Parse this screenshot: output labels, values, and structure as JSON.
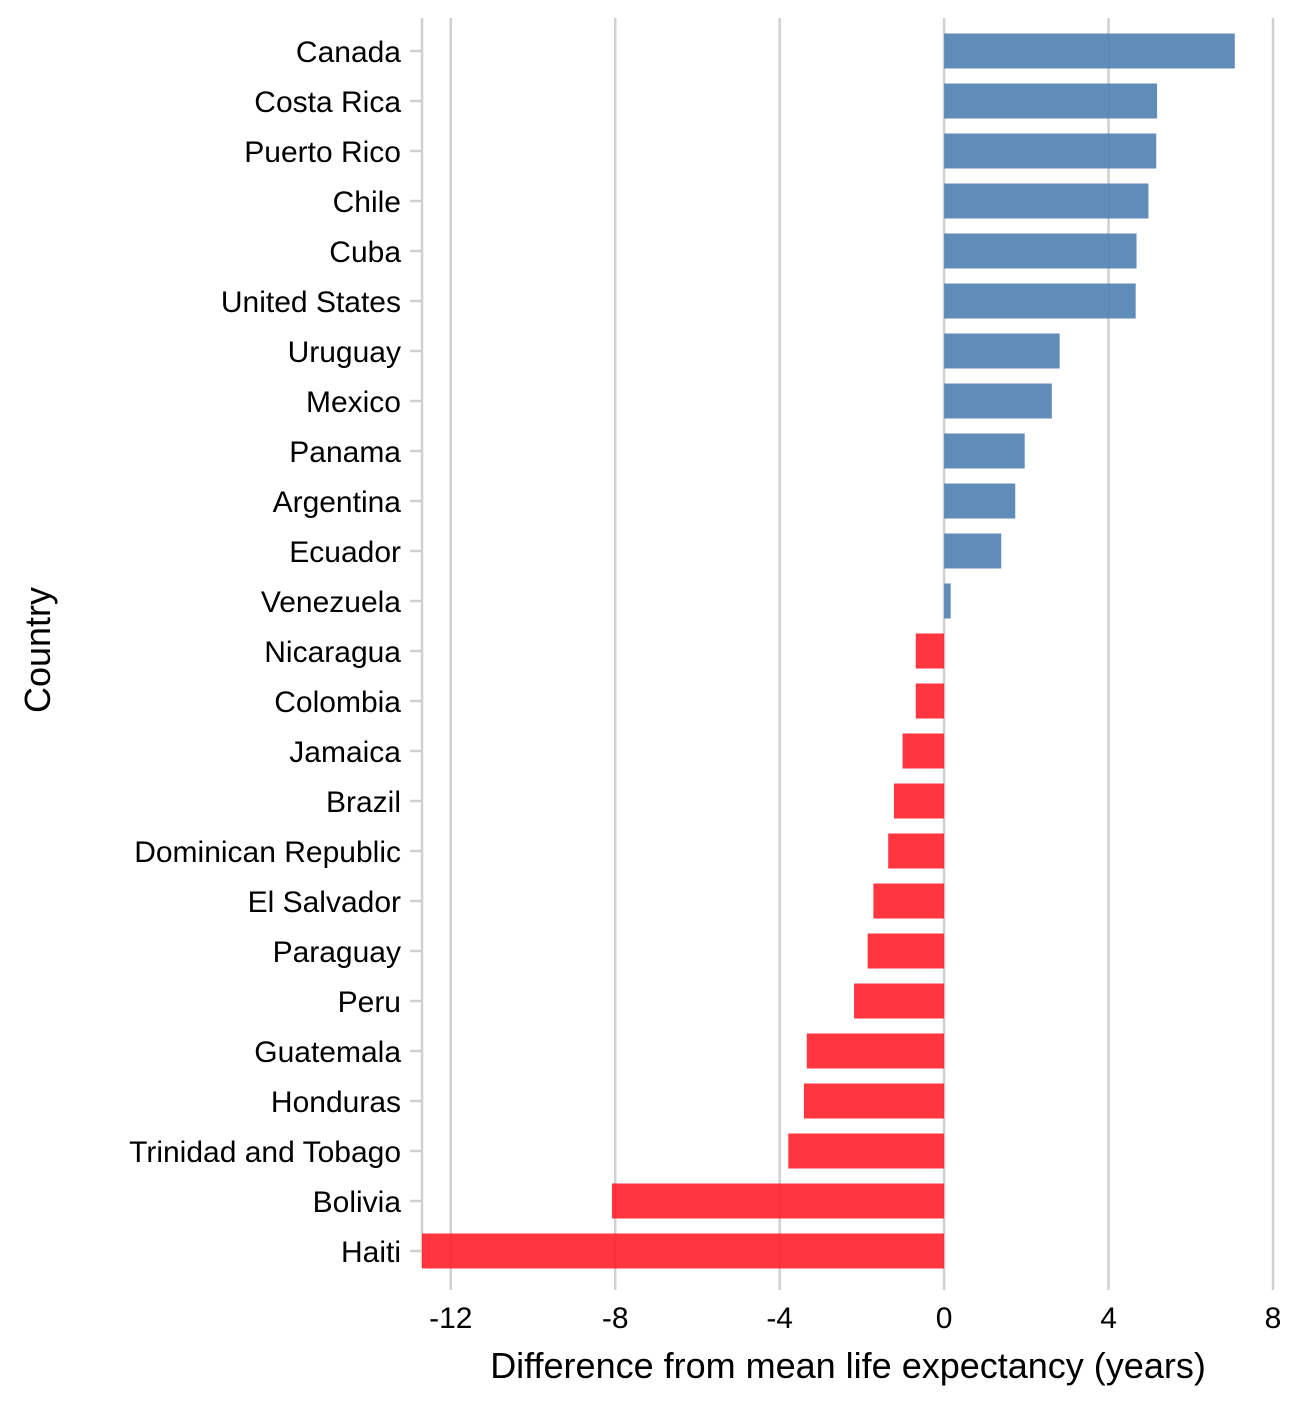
{
  "chart_data": {
    "type": "bar",
    "orientation": "horizontal",
    "xlabel": "Difference from mean life expectancy (years)",
    "ylabel": "Country",
    "xlim": [
      -12.7,
      8
    ],
    "xticks": [
      "-12",
      "-8",
      "-4",
      "0",
      "4",
      "8"
    ],
    "xtick_values": [
      -12,
      -8,
      -4,
      0,
      4,
      8
    ],
    "grid": "vertical major gridlines",
    "legend": "none",
    "colors": {
      "positive": "#4f7fb3",
      "negative": "#ff1a26"
    },
    "categories": [
      "Canada",
      "Costa Rica",
      "Puerto Rico",
      "Chile",
      "Cuba",
      "United States",
      "Uruguay",
      "Mexico",
      "Panama",
      "Argentina",
      "Ecuador",
      "Venezuela",
      "Nicaragua",
      "Colombia",
      "Jamaica",
      "Brazil",
      "Dominican Republic",
      "El Salvador",
      "Paraguay",
      "Peru",
      "Guatemala",
      "Honduras",
      "Trinidad and Tobago",
      "Bolivia",
      "Haiti"
    ],
    "values": [
      7.07,
      5.18,
      5.16,
      4.97,
      4.68,
      4.66,
      2.81,
      2.62,
      1.96,
      1.73,
      1.39,
      0.16,
      -0.69,
      -0.69,
      -1.01,
      -1.22,
      -1.36,
      -1.72,
      -1.86,
      -2.19,
      -3.34,
      -3.41,
      -3.79,
      -8.08,
      -12.7
    ]
  }
}
